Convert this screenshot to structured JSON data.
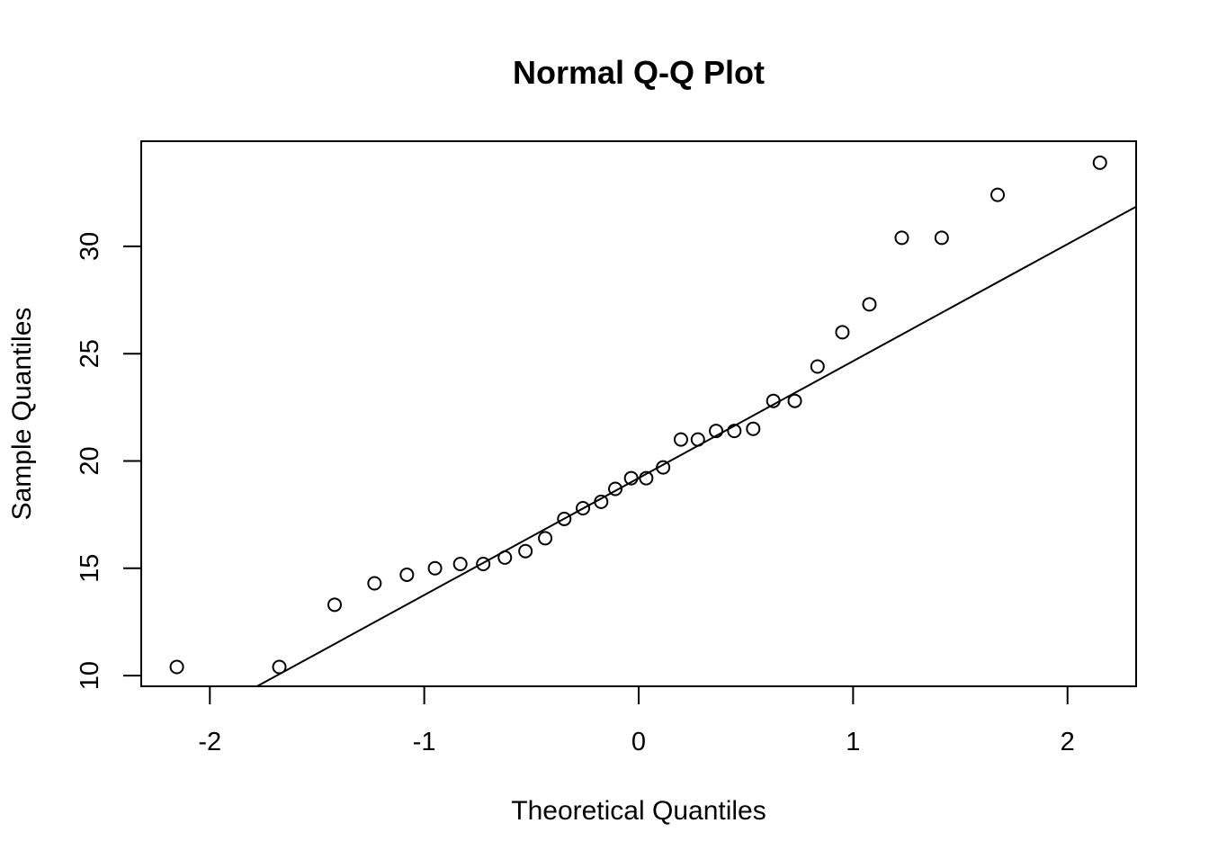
{
  "chart_data": {
    "type": "scatter",
    "title": "Normal Q-Q Plot",
    "xlabel": "Theoretical Quantiles",
    "ylabel": "Sample Quantiles",
    "xlim": [
      -2.32,
      2.32
    ],
    "ylim": [
      9.5,
      34.9
    ],
    "xticks": [
      -2,
      -1,
      0,
      1,
      2
    ],
    "xtick_labels": [
      "-2",
      "-1",
      "0",
      "1",
      "2"
    ],
    "yticks": [
      10,
      15,
      20,
      25,
      30
    ],
    "ytick_labels": [
      "10",
      "15",
      "20",
      "25",
      "30"
    ],
    "grid": false,
    "legend": "none",
    "x": [
      -2.154,
      -1.676,
      -1.418,
      -1.232,
      -1.081,
      -0.95,
      -0.832,
      -0.725,
      -0.624,
      -0.528,
      -0.436,
      -0.347,
      -0.26,
      -0.175,
      -0.109,
      -0.035,
      0.035,
      0.114,
      0.197,
      0.276,
      0.361,
      0.446,
      0.534,
      0.628,
      0.728,
      0.834,
      0.95,
      1.076,
      1.227,
      1.413,
      1.674,
      2.151
    ],
    "y": [
      10.4,
      10.4,
      13.3,
      14.3,
      14.7,
      15.0,
      15.2,
      15.2,
      15.5,
      15.8,
      16.4,
      17.3,
      17.8,
      18.1,
      18.7,
      19.2,
      19.2,
      19.7,
      21.0,
      21.0,
      21.4,
      21.4,
      21.5,
      22.8,
      22.8,
      24.4,
      26.0,
      27.3,
      30.4,
      30.4,
      32.4,
      33.9
    ],
    "reference_line": {
      "x": [
        -1.78,
        2.32
      ],
      "y": [
        9.5,
        31.85
      ]
    }
  }
}
